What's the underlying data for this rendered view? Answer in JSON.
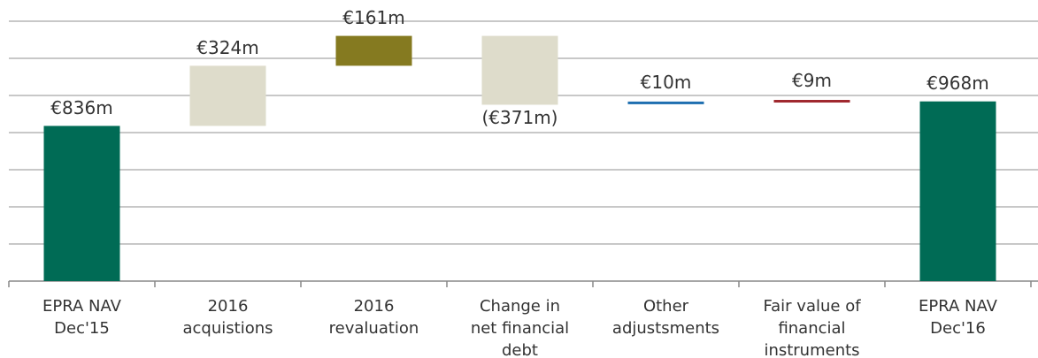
{
  "chart_data": {
    "type": "waterfall",
    "categories": [
      [
        "EPRA NAV",
        "Dec'15"
      ],
      [
        "2016",
        "acquistions"
      ],
      [
        "2016",
        "revaluation"
      ],
      [
        "Change in",
        "net financial",
        "debt"
      ],
      [
        "Other",
        "adjustsments"
      ],
      [
        "Fair value of",
        "financial",
        "instruments"
      ],
      [
        "EPRA NAV",
        "Dec'16"
      ]
    ],
    "values": [
      836,
      324,
      161,
      -371,
      10,
      9,
      968
    ],
    "value_labels": [
      "€836m",
      "€324m",
      "€161m",
      "(€371m)",
      "€10m",
      "€9m",
      "€968m"
    ],
    "is_total": [
      true,
      false,
      false,
      false,
      false,
      false,
      true
    ],
    "colors": [
      "#006b55",
      "#dedccb",
      "#857a20",
      "#dedccb",
      "#1f6fb0",
      "#a0282e",
      "#006b55"
    ],
    "ylim": [
      0,
      1400
    ],
    "yticks": [
      0,
      200,
      400,
      600,
      800,
      1000,
      1200,
      1400
    ],
    "grid": true
  }
}
